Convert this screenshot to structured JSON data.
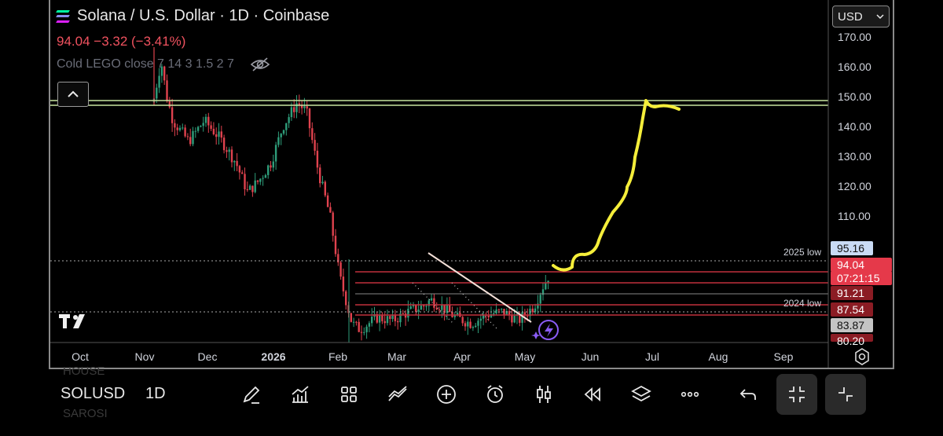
{
  "header": {
    "title": "Solana / U.S. Dollar · 1D · Coinbase",
    "price_line": "94.04 −3.32 (−3.41%)",
    "indicator": "Cold LEGO close 7 14 3 1.5 2 7"
  },
  "currency_select": {
    "value": "USD"
  },
  "price_axis": {
    "ticks": [
      "170.00",
      "160.00",
      "150.00",
      "140.00",
      "130.00",
      "120.00",
      "110.00"
    ],
    "tick_values": [
      170,
      160,
      150,
      140,
      130,
      120,
      110
    ]
  },
  "price_labels": [
    {
      "text": "95.16",
      "bg": "#c9dbf5",
      "fg": "#111111"
    },
    {
      "text": "94.04",
      "bg": "#e5394a",
      "fg": "#ffffff"
    },
    {
      "text": "07:21:15",
      "bg": "#e5394a",
      "fg": "#ffffff"
    },
    {
      "text": "91.21",
      "bg": "#8b1c24",
      "fg": "#ffffff"
    },
    {
      "text": "87.54",
      "bg": "#8b1c24",
      "fg": "#ffffff"
    },
    {
      "text": "83.87",
      "bg": "#c4c4c4",
      "fg": "#111111"
    },
    {
      "text": "80.20",
      "bg": "#8b1c24",
      "fg": "#ffffff"
    }
  ],
  "annotations": {
    "low_2025": "2025 low",
    "low_2024": "2024 low"
  },
  "time_axis": [
    "Oct",
    "Nov",
    "Dec",
    "2026",
    "Feb",
    "Mar",
    "Apr",
    "May",
    "Jun",
    "Jul",
    "Aug",
    "Sep"
  ],
  "bottom_bar": {
    "symbol": "SOLUSD",
    "timeframe": "1D",
    "ghost_top": "HOUSE",
    "ghost_bottom": "SAROSI"
  },
  "toolbar_icons": [
    "draw-icon",
    "indicators-icon",
    "layout-icon",
    "compare-icon",
    "add-icon",
    "alert-icon",
    "candle-type-icon",
    "replay-icon",
    "layers-icon",
    "more-icon",
    "undo-icon",
    "exit-fullscreen-icon",
    "collapse-icon"
  ],
  "colors": {
    "up": "#2e9d7a",
    "down": "#e0424e",
    "resistance": "#c8e6a0",
    "projection": "#f5ee3a",
    "support": "#c0303c",
    "trendline": "#f4e0d8",
    "boost": "#8a5cf6"
  }
}
